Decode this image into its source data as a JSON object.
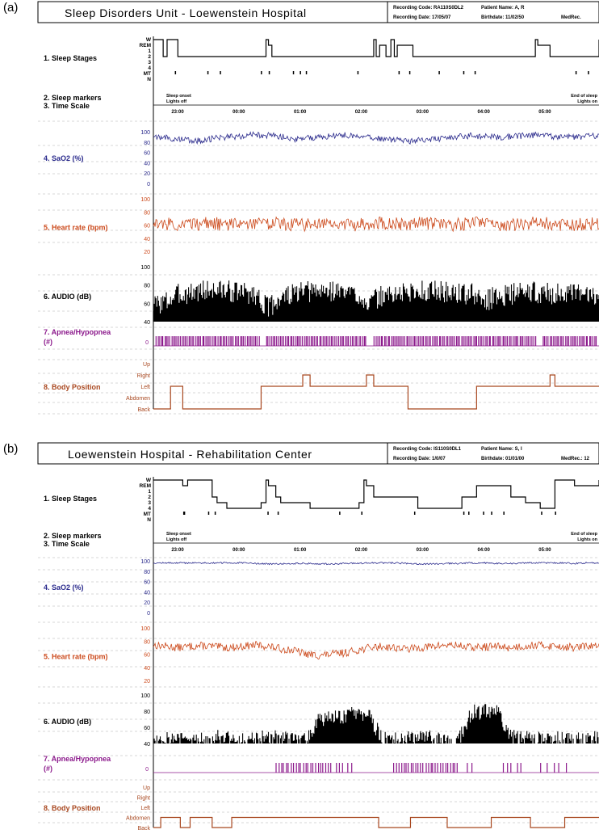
{
  "figure": {
    "colors": {
      "black": "#000000",
      "sao2": "#2a2a8c",
      "heart": "#cc4a1c",
      "audio": "#000000",
      "apnea": "#8c1a8c",
      "body": "#a8471f",
      "grid": "#b0b0b0"
    }
  },
  "panels": [
    {
      "tag": "(a)",
      "header": {
        "title": "Sleep Disorders Unit - Loewenstein Hospital",
        "recording_code": "Recording Code: RA110S0DL2",
        "recording_date": "Recording Date: 17/05/07",
        "patient_name": "Patient Name: A, R",
        "birthdate": "Birthdate: 11/02/50",
        "medrec": "MedRec."
      },
      "markers": {
        "onset": "Sleep onset",
        "lights_off": "Lights off",
        "end": "End of sleep",
        "lights_on": "Lights on"
      },
      "time_ticks": [
        "23:00",
        "00:00",
        "01:00",
        "02:00",
        "03:00",
        "04:00",
        "05:00"
      ]
    },
    {
      "tag": "(b)",
      "header": {
        "title": "Loewenstein Hospital - Rehabilitation Center",
        "recording_code": "Recording Code: IS110S0DL1",
        "recording_date": "Recording Date: 1/0/07",
        "patient_name": "Patient Name: S, I",
        "birthdate": "Birthdate: 01/01/00",
        "medrec": "MedRec.: 12"
      },
      "markers": {
        "onset": "Sleep onset",
        "lights_off": "Lights off",
        "end": "End of sleep",
        "lights_on": "Lights on"
      },
      "time_ticks": [
        "23:00",
        "00:00",
        "01:00",
        "02:00",
        "03:00",
        "04:00",
        "05:00"
      ]
    }
  ],
  "row_labels": {
    "sleep_stages": "1. Sleep Stages",
    "sleep_markers": "2. Sleep markers",
    "time_scale": "3. Time Scale",
    "sao2": "4. SaO2 (%)",
    "heart": "5. Heart rate (bpm)",
    "audio": "6. AUDIO (dB)",
    "apnea_line1": "7. Apnea/Hypopnea",
    "apnea_line2": "(#)",
    "body": "8. Body Position"
  },
  "axis_labels": {
    "stages": [
      "W",
      "REM",
      "1",
      "2",
      "3",
      "4",
      "MT",
      "N"
    ],
    "sao2": [
      "100",
      "80",
      "60",
      "40",
      "20",
      "0"
    ],
    "heart": [
      "100",
      "80",
      "60",
      "40",
      "20"
    ],
    "audio": [
      "100",
      "80",
      "60",
      "40"
    ],
    "apnea": [
      "0"
    ],
    "body": [
      "Up",
      "Right",
      "Left",
      "Abdomen",
      "Back"
    ]
  },
  "chart_data": [
    {
      "panel": "(a)",
      "type": "line",
      "x_range": [
        "22:40",
        "05:30"
      ],
      "sleep_stages": [
        [
          0,
          "W"
        ],
        [
          0.2,
          "2"
        ],
        [
          0.28,
          "W"
        ],
        [
          0.5,
          "2"
        ],
        [
          2.3,
          "W"
        ],
        [
          2.35,
          "REM"
        ],
        [
          2.42,
          "2"
        ],
        [
          4.5,
          "W"
        ],
        [
          4.55,
          "2"
        ],
        [
          4.62,
          "REM"
        ],
        [
          4.75,
          "2"
        ],
        [
          4.85,
          "W"
        ],
        [
          4.92,
          "2"
        ],
        [
          4.98,
          "REM"
        ],
        [
          5.3,
          "2"
        ],
        [
          7.8,
          "W"
        ],
        [
          7.85,
          "REM"
        ],
        [
          8.1,
          "2"
        ],
        [
          9.1,
          "W"
        ]
      ],
      "sao2_mean_pct": [
        92,
        88,
        85,
        82,
        84,
        88,
        90,
        92,
        94,
        93,
        91,
        86,
        87,
        90,
        92,
        93,
        91,
        88,
        86,
        84,
        82,
        83,
        86,
        88,
        90,
        92,
        91,
        89,
        90,
        92,
        93,
        92,
        90,
        89,
        91,
        92
      ],
      "heart_rate_mean_bpm": [
        64,
        62,
        60,
        61,
        63,
        62,
        60,
        62,
        64,
        63,
        62,
        61,
        60,
        62,
        63,
        61,
        60,
        62,
        63,
        62,
        61,
        63,
        62,
        60,
        61,
        63,
        62,
        61,
        60,
        62,
        63,
        62,
        61,
        60,
        62,
        63
      ],
      "audio_mean_db": [
        58,
        62,
        70,
        72,
        74,
        75,
        73,
        72,
        70,
        55,
        66,
        70,
        72,
        73,
        74,
        72,
        70,
        60,
        68,
        70,
        72,
        73,
        74,
        72,
        71,
        70,
        62,
        68,
        70,
        72,
        72,
        71,
        70,
        69,
        70,
        71
      ],
      "apnea_hypopnea": "frequent events across entire night",
      "body_position": [
        [
          0,
          "Back"
        ],
        [
          0.35,
          "Left"
        ],
        [
          0.6,
          "Back"
        ],
        [
          2.2,
          "Left"
        ],
        [
          3.05,
          "Right"
        ],
        [
          3.2,
          "Left"
        ],
        [
          4.35,
          "Right"
        ],
        [
          4.5,
          "Left"
        ],
        [
          5.2,
          "Back"
        ],
        [
          6.6,
          "Left"
        ],
        [
          8.1,
          "Right"
        ],
        [
          8.2,
          "Left"
        ],
        [
          9.1,
          "Left"
        ]
      ],
      "ylim_sao2": [
        0,
        100
      ],
      "ylim_heart": [
        20,
        100
      ],
      "ylim_audio": [
        40,
        100
      ]
    },
    {
      "panel": "(b)",
      "type": "line",
      "x_range": [
        "22:40",
        "05:30"
      ],
      "sleep_stages": [
        [
          0,
          "W"
        ],
        [
          0.6,
          "REM"
        ],
        [
          0.7,
          "W"
        ],
        [
          1.2,
          "2"
        ],
        [
          1.3,
          "3"
        ],
        [
          1.5,
          "4"
        ],
        [
          2.2,
          "3"
        ],
        [
          2.3,
          "W"
        ],
        [
          2.35,
          "REM"
        ],
        [
          2.5,
          "2"
        ],
        [
          2.6,
          "3"
        ],
        [
          3.2,
          "4"
        ],
        [
          4.2,
          "3"
        ],
        [
          4.3,
          "W"
        ],
        [
          4.35,
          "REM"
        ],
        [
          4.5,
          "2"
        ],
        [
          5.2,
          "2"
        ],
        [
          5.4,
          "4"
        ],
        [
          6.3,
          "2"
        ],
        [
          6.6,
          "REM"
        ],
        [
          7.3,
          "2"
        ],
        [
          7.6,
          "3"
        ],
        [
          7.9,
          "4"
        ],
        [
          8.2,
          "W"
        ],
        [
          8.6,
          "REM"
        ],
        [
          9.1,
          "W"
        ]
      ],
      "sao2_mean_pct": [
        96,
        96,
        96,
        96,
        96,
        96,
        96,
        96,
        95,
        94,
        94,
        95,
        95,
        94,
        94,
        95,
        95,
        96,
        96,
        96,
        95,
        94,
        94,
        95,
        95,
        96,
        96,
        95,
        95,
        96,
        96,
        96,
        96,
        95,
        96,
        96
      ],
      "heart_rate_mean_bpm": [
        74,
        72,
        70,
        72,
        73,
        71,
        70,
        72,
        74,
        72,
        68,
        66,
        60,
        58,
        60,
        62,
        66,
        70,
        72,
        70,
        68,
        70,
        72,
        74,
        73,
        70,
        71,
        72,
        70,
        72,
        74,
        73,
        72,
        70,
        72,
        73
      ],
      "audio_mean_db": [
        45,
        47,
        46,
        44,
        45,
        50,
        46,
        44,
        45,
        47,
        46,
        45,
        46,
        70,
        72,
        74,
        76,
        72,
        46,
        44,
        45,
        46,
        47,
        45,
        46,
        78,
        80,
        78,
        50,
        46,
        45,
        44,
        46,
        45,
        44,
        46
      ],
      "apnea_hypopnea": "sparse clusters mainly between 01:00 and 04:00",
      "body_position": [
        [
          0,
          "Back"
        ],
        [
          0.15,
          "Abdomen"
        ],
        [
          0.55,
          "Back"
        ],
        [
          0.75,
          "Abdomen"
        ],
        [
          1.2,
          "Back"
        ],
        [
          1.6,
          "Abdomen"
        ],
        [
          4.6,
          "Back"
        ],
        [
          5.25,
          "Abdomen"
        ],
        [
          6.0,
          "Back"
        ],
        [
          6.9,
          "Abdomen"
        ],
        [
          7.7,
          "Back"
        ],
        [
          8.4,
          "Abdomen"
        ],
        [
          9.1,
          "Abdomen"
        ]
      ],
      "ylim_sao2": [
        0,
        100
      ],
      "ylim_heart": [
        20,
        100
      ],
      "ylim_audio": [
        40,
        100
      ]
    }
  ]
}
